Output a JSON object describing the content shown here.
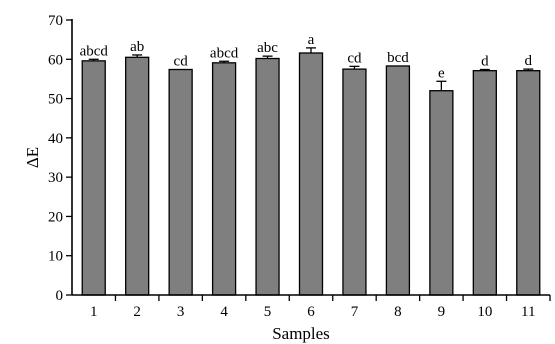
{
  "chart_data": {
    "type": "bar",
    "categories": [
      "1",
      "2",
      "3",
      "4",
      "5",
      "6",
      "7",
      "8",
      "9",
      "10",
      "11"
    ],
    "values": [
      59.6,
      60.5,
      57.4,
      59.1,
      60.2,
      61.6,
      57.5,
      58.3,
      52.0,
      57.1,
      57.1
    ],
    "errors": [
      0.4,
      0.6,
      0.0,
      0.4,
      0.6,
      1.3,
      0.7,
      0.0,
      2.4,
      0.3,
      0.4
    ],
    "significance": [
      "abcd",
      "ab",
      "cd",
      "abcd",
      "abc",
      "a",
      "cd",
      "bcd",
      "e",
      "d",
      "d"
    ],
    "xlabel": "Samples",
    "ylabel": "ΔE",
    "ylim": [
      0,
      70
    ],
    "yticks": [
      0,
      10,
      20,
      30,
      40,
      50,
      60,
      70
    ],
    "bar_color": "#7f7f7f",
    "grid": false
  }
}
